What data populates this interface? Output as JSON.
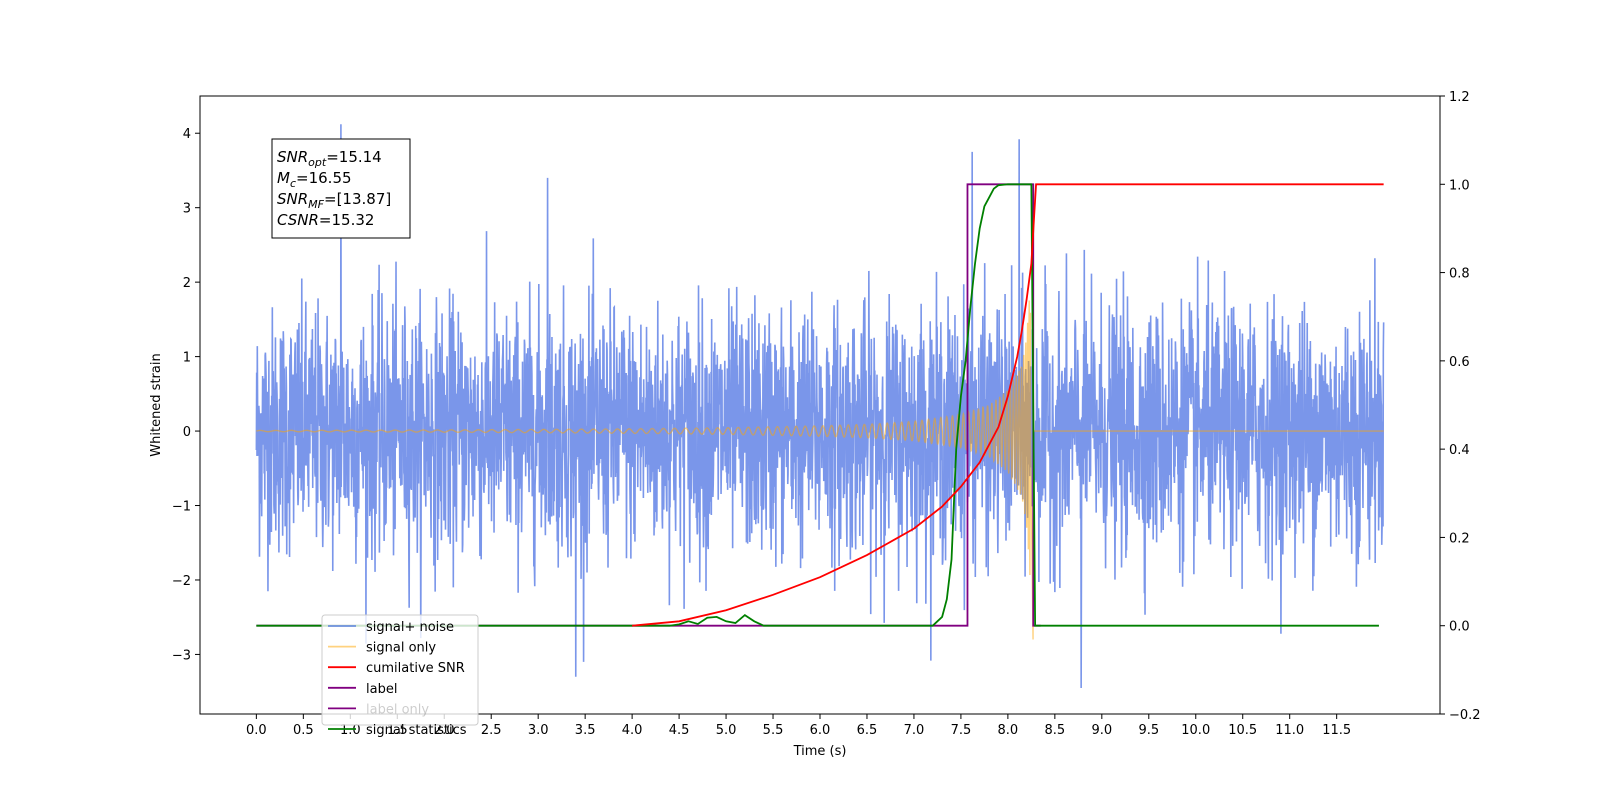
{
  "chart_data": {
    "type": "line",
    "title": "",
    "xlabel": "Time (s)",
    "ylabel": "Whitened strain",
    "y2label": "",
    "xlim": [
      -0.6,
      12.6
    ],
    "ylim": [
      -3.8,
      4.5
    ],
    "y2lim": [
      -0.2,
      1.2
    ],
    "xticks": [
      0.0,
      0.5,
      1.0,
      1.5,
      2.0,
      2.5,
      3.0,
      3.5,
      4.0,
      4.5,
      5.0,
      5.5,
      6.0,
      6.5,
      7.0,
      7.5,
      8.0,
      8.5,
      9.0,
      9.5,
      10.0,
      10.5,
      11.0,
      11.5
    ],
    "xtick_labels": [
      "0.0",
      "0.5",
      "1.0",
      "1.5",
      "2.0",
      "2.5",
      "3.0",
      "3.5",
      "4.0",
      "4.5",
      "5.0",
      "5.5",
      "6.0",
      "6.5",
      "7.0",
      "7.5",
      "8.0",
      "8.5",
      "9.0",
      "9.5",
      "10.0",
      "10.5",
      "11.0",
      "11.5"
    ],
    "yticks": [
      -3,
      -2,
      -1,
      0,
      1,
      2,
      3,
      4
    ],
    "ytick_labels": [
      "−3",
      "−2",
      "−1",
      "0",
      "1",
      "2",
      "3",
      "4"
    ],
    "y2ticks": [
      -0.2,
      0.0,
      0.2,
      0.4,
      0.6,
      0.8,
      1.0,
      1.2
    ],
    "y2tick_labels": [
      "−0.2",
      "0.0",
      "0.2",
      "0.4",
      "0.6",
      "0.8",
      "1.0",
      "1.2"
    ],
    "grid": false,
    "legend_position": "lower-left",
    "annotation": {
      "lines": [
        {
          "base": "SNR",
          "sub": "opt",
          "rest": "=15.14"
        },
        {
          "base": "M",
          "sub": "c",
          "rest": "=16.55"
        },
        {
          "base": "SNR",
          "sub": "MF",
          "rest": "=[13.87]"
        },
        {
          "base": "CSNR",
          "sub": "",
          "rest": "=15.32"
        }
      ]
    },
    "noise": {
      "t_start": 0.0,
      "t_end": 12.0,
      "std": 0.82,
      "peaks": [
        {
          "x": 0.9,
          "y": 4.12
        },
        {
          "x": 8.12,
          "y": 3.92
        },
        {
          "x": 7.62,
          "y": 3.75
        },
        {
          "x": 3.1,
          "y": 3.4
        },
        {
          "x": 8.78,
          "y": -3.45
        },
        {
          "x": 3.4,
          "y": -3.3
        }
      ]
    },
    "series": [
      {
        "name": "signal+ noise",
        "axis": "left",
        "color": "#4169e1",
        "opacity": 0.7
      },
      {
        "name": "signal only",
        "axis": "left",
        "color": "#ffa500",
        "opacity": 0.5,
        "envelope": {
          "x": [
            0.0,
            2.0,
            4.0,
            5.0,
            6.0,
            6.5,
            7.0,
            7.5,
            7.8,
            8.0,
            8.15,
            8.2,
            8.25,
            8.28
          ],
          "y": [
            0.008,
            0.015,
            0.03,
            0.045,
            0.07,
            0.09,
            0.13,
            0.22,
            0.35,
            0.55,
            0.9,
            1.3,
            2.3,
            0.0
          ]
        },
        "t_merger": 8.27,
        "t_end": 12.0
      },
      {
        "name": "cumilative SNR",
        "axis": "right",
        "color": "#ff0000",
        "x": [
          4.0,
          4.5,
          5.0,
          5.5,
          6.0,
          6.5,
          7.0,
          7.3,
          7.5,
          7.7,
          7.9,
          8.0,
          8.1,
          8.15,
          8.2,
          8.25,
          8.28,
          8.3,
          12.0
        ],
        "y": [
          0.0,
          0.01,
          0.035,
          0.07,
          0.11,
          0.16,
          0.22,
          0.27,
          0.315,
          0.37,
          0.45,
          0.52,
          0.61,
          0.67,
          0.74,
          0.82,
          0.93,
          1.0,
          1.0
        ]
      },
      {
        "name": "label",
        "axis": "right",
        "color": "#800080",
        "x": [
          0.0,
          7.57,
          7.57,
          8.27,
          8.27,
          8.35
        ],
        "y": [
          0.0,
          0.0,
          1.0,
          1.0,
          0.0,
          0.0
        ]
      },
      {
        "name": "label only",
        "axis": "right",
        "color": "#800080",
        "hidden": true
      },
      {
        "name": "signal statistics",
        "axis": "right",
        "color": "#008000",
        "x": [
          0.0,
          4.4,
          4.5,
          4.6,
          4.7,
          4.8,
          4.9,
          5.0,
          5.1,
          5.2,
          5.3,
          5.4,
          7.2,
          7.3,
          7.35,
          7.4,
          7.45,
          7.5,
          7.55,
          7.6,
          7.65,
          7.7,
          7.75,
          7.8,
          7.85,
          7.9,
          8.0,
          8.25,
          8.29,
          8.35,
          11.95
        ],
        "y": [
          0.0,
          0.0,
          0.003,
          0.01,
          0.004,
          0.018,
          0.02,
          0.01,
          0.006,
          0.024,
          0.01,
          0.0,
          0.0,
          0.02,
          0.06,
          0.15,
          0.4,
          0.52,
          0.6,
          0.72,
          0.82,
          0.9,
          0.95,
          0.97,
          0.99,
          0.998,
          1.0,
          1.0,
          0.0,
          0.0,
          0.0
        ]
      }
    ],
    "legend": [
      "signal+ noise",
      "signal only",
      "cumilative SNR",
      "label",
      "label only",
      "signal statistics"
    ]
  }
}
